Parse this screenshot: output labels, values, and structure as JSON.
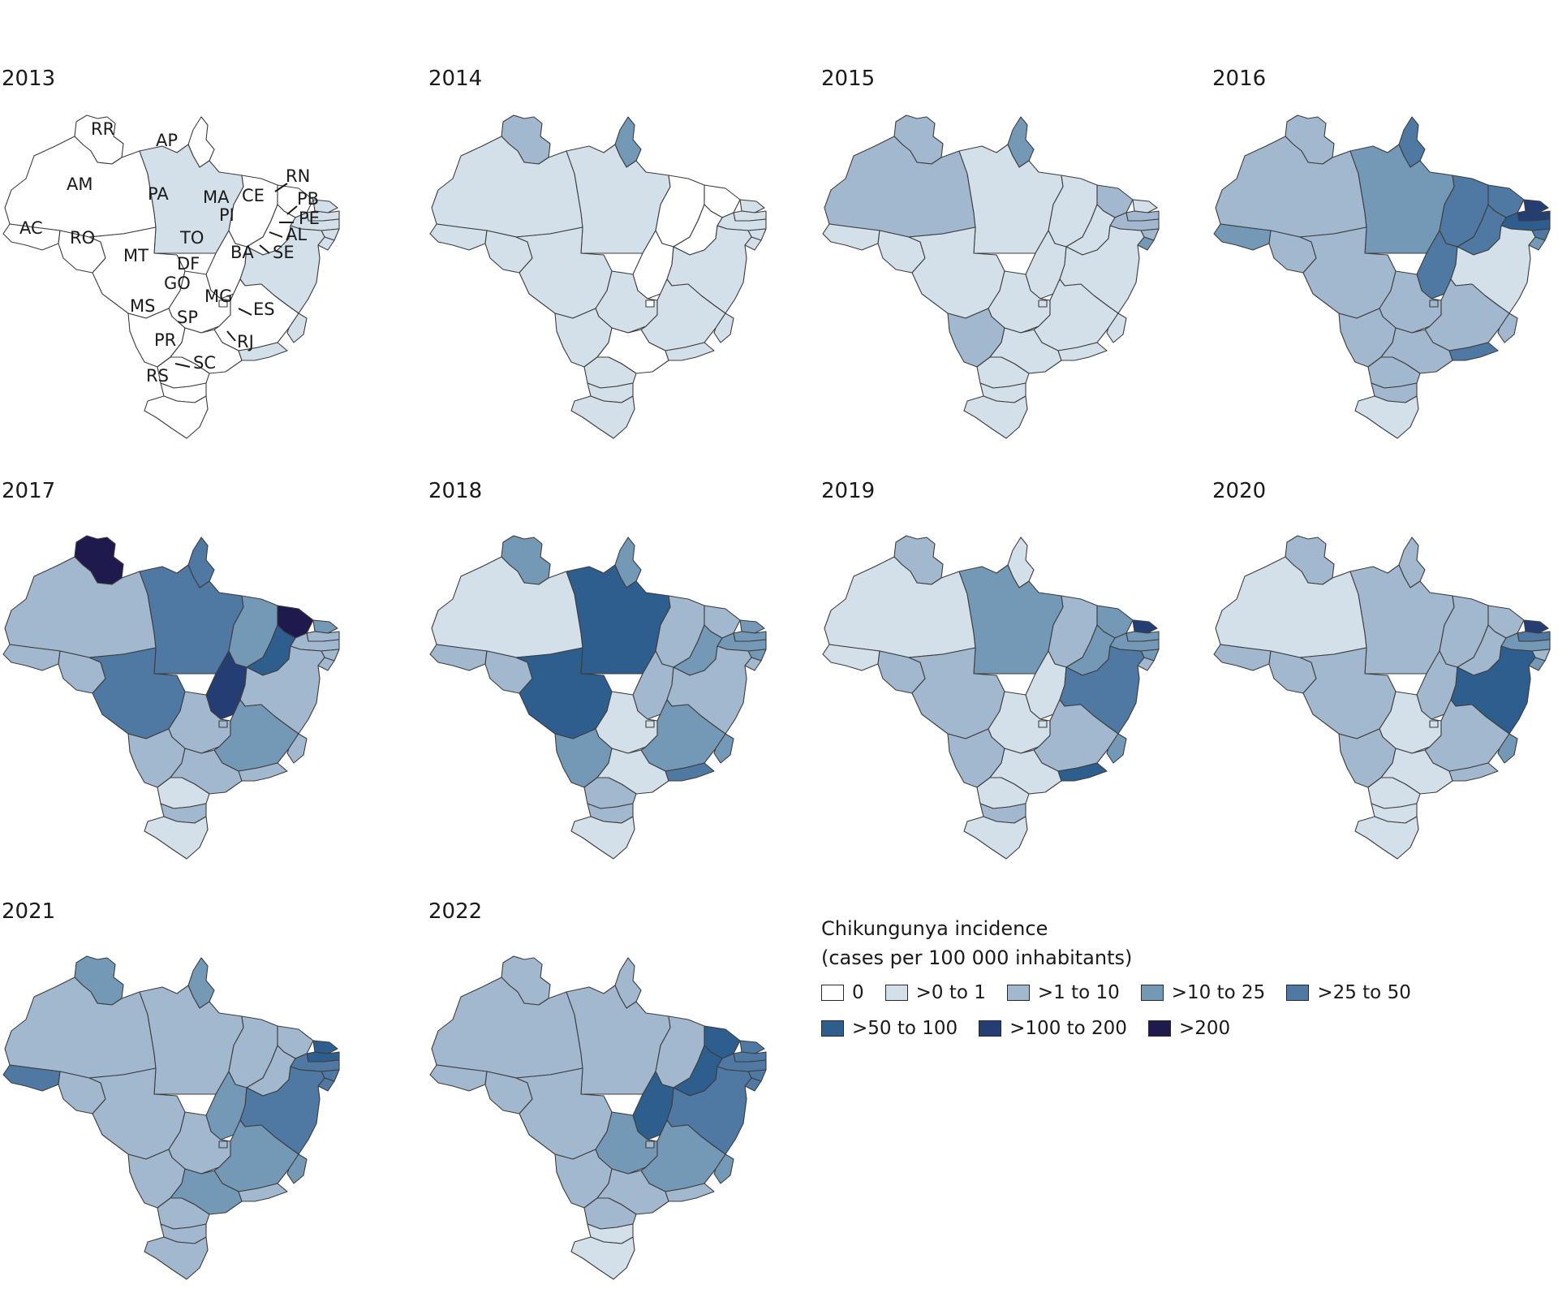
{
  "legend": {
    "title_line1": "Chikungunya incidence",
    "title_line2": "(cases per 100 000 inhabitants)",
    "classes": [
      {
        "label": "0",
        "color": "#ffffff"
      },
      {
        "label": ">0 to 1",
        "color": "#d4e0e9"
      },
      {
        "label": ">1 to 10",
        "color": "#a2b8cf"
      },
      {
        "label": ">10 to 25",
        "color": "#7399b6"
      },
      {
        "label": ">25 to 50",
        "color": "#4f78a2"
      },
      {
        "label": ">50 to 100",
        "color": "#2e5e8e"
      },
      {
        "label": ">100 to 200",
        "color": "#243d73"
      },
      {
        "label": ">200",
        "color": "#1e1a4d"
      }
    ]
  },
  "state_labels": [
    "RR",
    "AP",
    "AM",
    "PA",
    "MA",
    "CE",
    "RN",
    "PB",
    "PE",
    "AL",
    "SE",
    "PI",
    "AC",
    "RO",
    "MT",
    "TO",
    "BA",
    "DF",
    "GO",
    "MG",
    "ES",
    "MS",
    "SP",
    "PR",
    "RJ",
    "SC",
    "RS"
  ],
  "years": [
    {
      "year": "2013",
      "classes": {
        "RR": 0,
        "AP": 0,
        "AM": 0,
        "PA": 1,
        "MA": 0,
        "CE": 0,
        "RN": 1,
        "PB": 1,
        "PE": 1,
        "AL": 1,
        "SE": 1,
        "PI": 0,
        "AC": 0,
        "RO": 0,
        "MT": 0,
        "TO": 0,
        "BA": 1,
        "DF": 0,
        "GO": 0,
        "MG": 0,
        "ES": 1,
        "MS": 0,
        "SP": 0,
        "PR": 0,
        "RJ": 1,
        "SC": 0,
        "RS": 0
      }
    },
    {
      "year": "2014",
      "classes": {
        "RR": 2,
        "AP": 3,
        "AM": 1,
        "PA": 1,
        "MA": 0,
        "CE": 0,
        "RN": 1,
        "PB": 1,
        "PE": 1,
        "AL": 1,
        "SE": 1,
        "PI": 0,
        "AC": 1,
        "RO": 1,
        "MT": 1,
        "TO": 0,
        "BA": 1,
        "DF": 0,
        "GO": 1,
        "MG": 1,
        "ES": 1,
        "MS": 1,
        "SP": 0,
        "PR": 1,
        "RJ": 1,
        "SC": 1,
        "RS": 1
      }
    },
    {
      "year": "2015",
      "classes": {
        "RR": 2,
        "AP": 3,
        "AM": 2,
        "PA": 1,
        "MA": 1,
        "CE": 2,
        "RN": 1,
        "PB": 2,
        "PE": 2,
        "AL": 2,
        "SE": 3,
        "PI": 1,
        "AC": 1,
        "RO": 1,
        "MT": 1,
        "TO": 1,
        "BA": 1,
        "DF": 1,
        "GO": 1,
        "MG": 1,
        "ES": 1,
        "MS": 2,
        "SP": 1,
        "PR": 1,
        "RJ": 1,
        "SC": 1,
        "RS": 1
      }
    },
    {
      "year": "2016",
      "classes": {
        "RR": 2,
        "AP": 4,
        "AM": 2,
        "PA": 3,
        "MA": 4,
        "CE": 4,
        "RN": 6,
        "PB": 6,
        "PE": 5,
        "AL": 4,
        "SE": 3,
        "PI": 4,
        "AC": 3,
        "RO": 2,
        "MT": 2,
        "TO": 4,
        "BA": 1,
        "DF": 2,
        "GO": 2,
        "MG": 2,
        "ES": 2,
        "MS": 2,
        "SP": 2,
        "PR": 2,
        "RJ": 4,
        "SC": 2,
        "RS": 1
      }
    },
    {
      "year": "2017",
      "classes": {
        "RR": 7,
        "AP": 4,
        "AM": 2,
        "PA": 4,
        "MA": 3,
        "CE": 7,
        "RN": 3,
        "PB": 2,
        "PE": 2,
        "AL": 2,
        "SE": 2,
        "PI": 5,
        "AC": 2,
        "RO": 2,
        "MT": 4,
        "TO": 6,
        "BA": 2,
        "DF": 2,
        "GO": 2,
        "MG": 3,
        "ES": 2,
        "MS": 2,
        "SP": 2,
        "PR": 1,
        "RJ": 2,
        "SC": 2,
        "RS": 1
      }
    },
    {
      "year": "2018",
      "classes": {
        "RR": 3,
        "AP": 3,
        "AM": 1,
        "PA": 5,
        "MA": 2,
        "CE": 2,
        "RN": 3,
        "PB": 3,
        "PE": 3,
        "AL": 3,
        "SE": 2,
        "PI": 3,
        "AC": 2,
        "RO": 2,
        "MT": 5,
        "TO": 2,
        "BA": 2,
        "DF": 1,
        "GO": 1,
        "MG": 3,
        "ES": 3,
        "MS": 3,
        "SP": 1,
        "PR": 2,
        "RJ": 4,
        "SC": 2,
        "RS": 1
      }
    },
    {
      "year": "2019",
      "classes": {
        "RR": 2,
        "AP": 1,
        "AM": 1,
        "PA": 3,
        "MA": 2,
        "CE": 3,
        "RN": 6,
        "PB": 3,
        "PE": 3,
        "AL": 3,
        "SE": 2,
        "PI": 3,
        "AC": 1,
        "RO": 2,
        "MT": 2,
        "TO": 1,
        "BA": 4,
        "DF": 1,
        "GO": 1,
        "MG": 2,
        "ES": 3,
        "MS": 2,
        "SP": 1,
        "PR": 1,
        "RJ": 5,
        "SC": 2,
        "RS": 1
      }
    },
    {
      "year": "2020",
      "classes": {
        "RR": 2,
        "AP": 2,
        "AM": 1,
        "PA": 2,
        "MA": 2,
        "CE": 2,
        "RN": 6,
        "PB": 4,
        "PE": 3,
        "AL": 2,
        "SE": 3,
        "PI": 2,
        "AC": 2,
        "RO": 2,
        "MT": 2,
        "TO": 2,
        "BA": 5,
        "DF": 1,
        "GO": 1,
        "MG": 2,
        "ES": 3,
        "MS": 2,
        "SP": 1,
        "PR": 1,
        "RJ": 2,
        "SC": 1,
        "RS": 1
      }
    },
    {
      "year": "2021",
      "classes": {
        "RR": 3,
        "AP": 3,
        "AM": 2,
        "PA": 2,
        "MA": 2,
        "CE": 2,
        "RN": 5,
        "PB": 5,
        "PE": 4,
        "AL": 4,
        "SE": 4,
        "PI": 2,
        "AC": 4,
        "RO": 2,
        "MT": 2,
        "TO": 3,
        "BA": 4,
        "DF": 2,
        "GO": 2,
        "MG": 3,
        "ES": 3,
        "MS": 2,
        "SP": 3,
        "PR": 2,
        "RJ": 2,
        "SC": 2,
        "RS": 2
      }
    },
    {
      "year": "2022",
      "classes": {
        "RR": 2,
        "AP": 2,
        "AM": 2,
        "PA": 2,
        "MA": 2,
        "CE": 5,
        "RN": 4,
        "PB": 4,
        "PE": 4,
        "AL": 4,
        "SE": 4,
        "PI": 5,
        "AC": 2,
        "RO": 2,
        "MT": 2,
        "TO": 5,
        "BA": 4,
        "DF": 2,
        "GO": 3,
        "MG": 3,
        "ES": 3,
        "MS": 2,
        "SP": 2,
        "PR": 2,
        "RJ": 2,
        "SC": 1,
        "RS": 1
      }
    }
  ]
}
